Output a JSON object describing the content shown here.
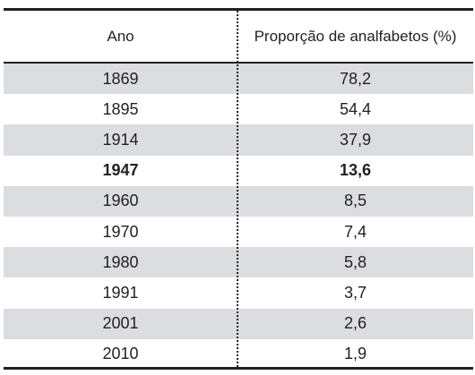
{
  "table": {
    "headers": {
      "year": "Ano",
      "proportion": "Proporção de analfabetos (%)"
    },
    "rows": [
      {
        "year": "1869",
        "value": "78,2",
        "shaded": true,
        "bold": false
      },
      {
        "year": "1895",
        "value": "54,4",
        "shaded": false,
        "bold": false
      },
      {
        "year": "1914",
        "value": "37,9",
        "shaded": true,
        "bold": false
      },
      {
        "year": "1947",
        "value": "13,6",
        "shaded": false,
        "bold": true
      },
      {
        "year": "1960",
        "value": "8,5",
        "shaded": true,
        "bold": false
      },
      {
        "year": "1970",
        "value": "7,4",
        "shaded": false,
        "bold": false
      },
      {
        "year": "1980",
        "value": "5,8",
        "shaded": true,
        "bold": false
      },
      {
        "year": "1991",
        "value": "3,7",
        "shaded": false,
        "bold": false
      },
      {
        "year": "2001",
        "value": "2,6",
        "shaded": true,
        "bold": false
      },
      {
        "year": "2010",
        "value": "1,9",
        "shaded": false,
        "bold": false
      }
    ],
    "shade_color": "#dcdde0",
    "rule_color": "#231f20"
  }
}
